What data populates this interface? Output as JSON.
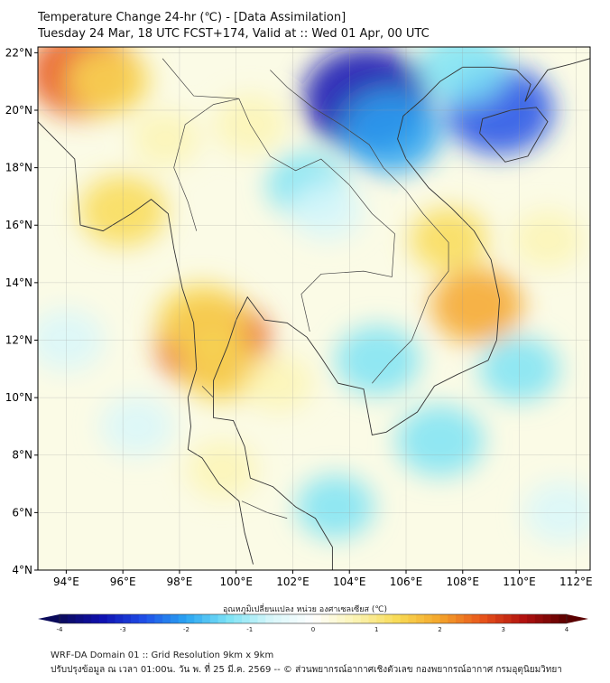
{
  "header": {
    "title_line1": "Temperature Change 24-hr (℃) - [Data Assimilation]",
    "title_line2": "Tuesday 24 Mar, 18 UTC FCST+174, Valid at :: Wed 01 Apr, 00 UTC"
  },
  "map": {
    "lon_range": [
      93,
      112.5
    ],
    "lat_range": [
      4,
      22.2
    ],
    "lat_ticks": [
      "4°N",
      "6°N",
      "8°N",
      "10°N",
      "12°N",
      "14°N",
      "16°N",
      "18°N",
      "20°N",
      "22°N"
    ],
    "lon_ticks": [
      "94°E",
      "96°E",
      "98°E",
      "100°E",
      "102°E",
      "104°E",
      "106°E",
      "108°E",
      "110°E",
      "112°E"
    ],
    "grid": true,
    "field_blobs": [
      {
        "lon": 94.6,
        "lat": 21.3,
        "value": 2.4
      },
      {
        "lon": 95.5,
        "lat": 21.0,
        "value": 1.3
      },
      {
        "lon": 99.2,
        "lat": 11.9,
        "value": 2.6
      },
      {
        "lon": 98.8,
        "lat": 12.7,
        "value": 1.6
      },
      {
        "lon": 99.5,
        "lat": 11.0,
        "value": 1.2
      },
      {
        "lon": 108.5,
        "lat": 13.2,
        "value": 1.7
      },
      {
        "lon": 107.5,
        "lat": 15.5,
        "value": 1.1
      },
      {
        "lon": 96.0,
        "lat": 16.5,
        "value": 1.5
      },
      {
        "lon": 104.6,
        "lat": 20.4,
        "value": -3.2
      },
      {
        "lon": 105.5,
        "lat": 19.2,
        "value": -2.0
      },
      {
        "lon": 109.3,
        "lat": 20.0,
        "value": -2.4
      },
      {
        "lon": 108.0,
        "lat": 21.5,
        "value": -1.6
      },
      {
        "lon": 102.5,
        "lat": 17.4,
        "value": -1.2
      },
      {
        "lon": 103.2,
        "lat": 16.5,
        "value": -0.9
      },
      {
        "lon": 105.0,
        "lat": 11.3,
        "value": -1.4
      },
      {
        "lon": 107.2,
        "lat": 8.5,
        "value": -1.5
      },
      {
        "lon": 110.0,
        "lat": 11.0,
        "value": -1.2
      },
      {
        "lon": 94.0,
        "lat": 12.0,
        "value": -1.0
      },
      {
        "lon": 96.5,
        "lat": 9.0,
        "value": -0.9
      },
      {
        "lon": 103.5,
        "lat": 6.2,
        "value": -1.1
      },
      {
        "lon": 111.5,
        "lat": 6.0,
        "value": -1.0
      },
      {
        "lon": 99.5,
        "lat": 7.5,
        "value": 0.8
      },
      {
        "lon": 101.5,
        "lat": 10.5,
        "value": 0.7
      },
      {
        "lon": 100.5,
        "lat": 19.5,
        "value": 0.9
      },
      {
        "lon": 111.0,
        "lat": 15.5,
        "value": 0.8
      },
      {
        "lon": 97.5,
        "lat": 19.0,
        "value": 0.7
      }
    ]
  },
  "colorbar": {
    "label": "อุณหภูมิเปลี่ยนแปลง หน่วย องศาเซลเซียส (℃)",
    "min": -4,
    "max": 4,
    "tick_labels": [
      "-4",
      "-3",
      "-2",
      "-1",
      "0",
      "1",
      "2",
      "3",
      "4"
    ],
    "colors": [
      "#0a0a5a",
      "#1010b0",
      "#1f4fe8",
      "#2aa5f2",
      "#7de3f5",
      "#d8f7fa",
      "#ffffff",
      "#fbf4b4",
      "#f8da55",
      "#f4a52a",
      "#e8541a",
      "#b0100f",
      "#5a0000"
    ]
  },
  "footer": {
    "line1": "WRF-DA Domain 01 :: Grid Resolution 9km x 9km",
    "line2": "ปรับปรุงข้อมูล ณ เวลา 01:00น. วัน พ. ที่ 25 มี.ค. 2569 -- © ส่วนพยากรณ์อากาศเชิงตัวเลข กองพยากรณ์อากาศ กรมอุตุนิยมวิทยา"
  }
}
